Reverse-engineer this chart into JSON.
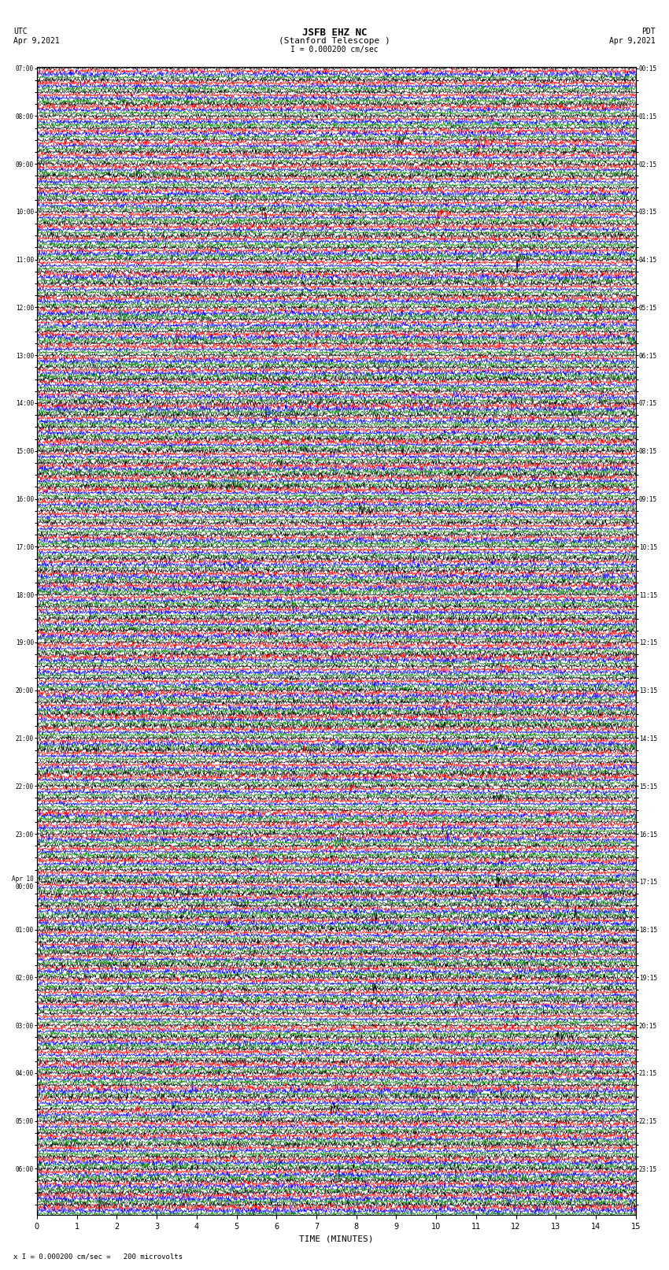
{
  "title_line1": "JSFB EHZ NC",
  "title_line2": "(Stanford Telescope )",
  "scale_label": "I = 0.000200 cm/sec",
  "bottom_label": "x I = 0.000200 cm/sec =   200 microvolts",
  "utc_label": "UTC",
  "utc_date": "Apr 9,2021",
  "pdt_label": "PDT",
  "pdt_date": "Apr 9,2021",
  "xlabel": "TIME (MINUTES)",
  "trace_color_cycle": [
    "black",
    "red",
    "blue",
    "green"
  ],
  "num_rows": 96,
  "traces_per_row": 4,
  "minutes_per_row": 15,
  "fig_width": 8.5,
  "fig_height": 16.13,
  "bg_color": "white",
  "left_tick_labels": [
    "07:00",
    "",
    "",
    "",
    "08:00",
    "",
    "",
    "",
    "09:00",
    "",
    "",
    "",
    "10:00",
    "",
    "",
    "",
    "11:00",
    "",
    "",
    "",
    "12:00",
    "",
    "",
    "",
    "13:00",
    "",
    "",
    "",
    "14:00",
    "",
    "",
    "",
    "15:00",
    "",
    "",
    "",
    "16:00",
    "",
    "",
    "",
    "17:00",
    "",
    "",
    "",
    "18:00",
    "",
    "",
    "",
    "19:00",
    "",
    "",
    "",
    "20:00",
    "",
    "",
    "",
    "21:00",
    "",
    "",
    "",
    "22:00",
    "",
    "",
    "",
    "23:00",
    "",
    "",
    "",
    "Apr 10\n00:00",
    "",
    "",
    "",
    "01:00",
    "",
    "",
    "",
    "02:00",
    "",
    "",
    "",
    "03:00",
    "",
    "",
    "",
    "04:00",
    "",
    "",
    "",
    "05:00",
    "",
    "",
    "",
    "06:00",
    "",
    "",
    ""
  ],
  "right_tick_labels": [
    "00:15",
    "",
    "",
    "",
    "01:15",
    "",
    "",
    "",
    "02:15",
    "",
    "",
    "",
    "03:15",
    "",
    "",
    "",
    "04:15",
    "",
    "",
    "",
    "05:15",
    "",
    "",
    "",
    "06:15",
    "",
    "",
    "",
    "07:15",
    "",
    "",
    "",
    "08:15",
    "",
    "",
    "",
    "09:15",
    "",
    "",
    "",
    "10:15",
    "",
    "",
    "",
    "11:15",
    "",
    "",
    "",
    "12:15",
    "",
    "",
    "",
    "13:15",
    "",
    "",
    "",
    "14:15",
    "",
    "",
    "",
    "15:15",
    "",
    "",
    "",
    "16:15",
    "",
    "",
    "",
    "17:15",
    "",
    "",
    "",
    "18:15",
    "",
    "",
    "",
    "19:15",
    "",
    "",
    "",
    "20:15",
    "",
    "",
    "",
    "21:15",
    "",
    "",
    "",
    "22:15",
    "",
    "",
    "",
    "23:15",
    "",
    "",
    ""
  ]
}
